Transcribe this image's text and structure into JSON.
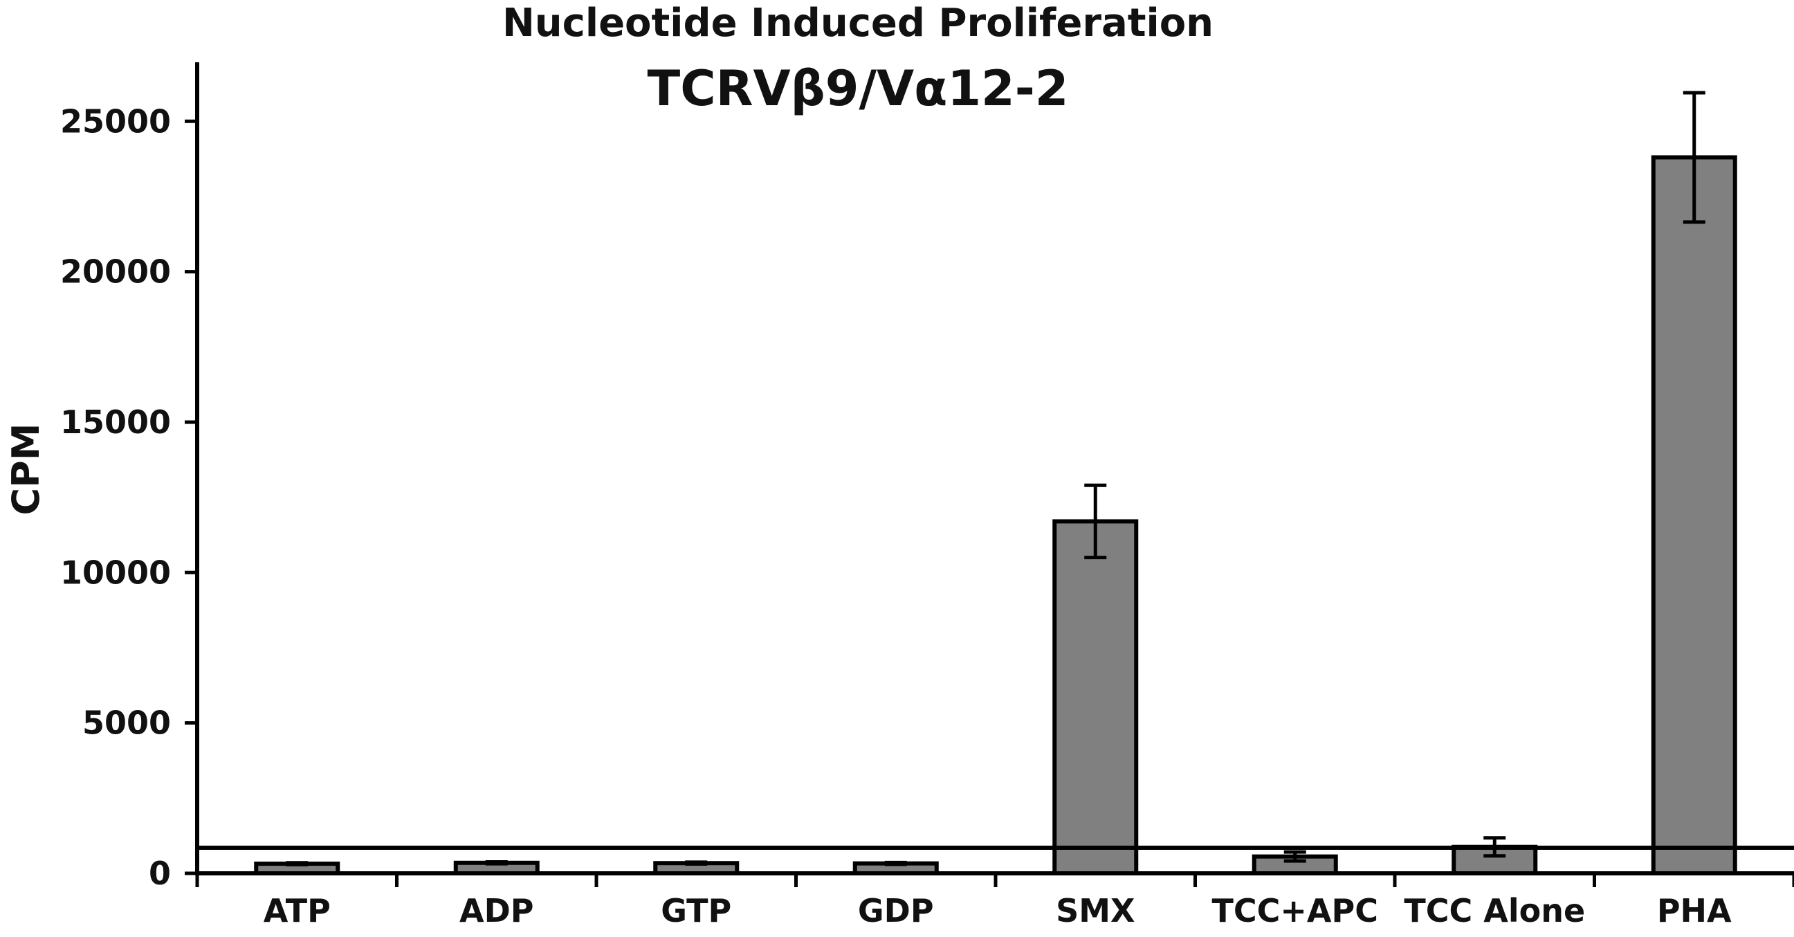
{
  "chart_data": {
    "type": "bar",
    "title": "Nucleotide Induced Proliferation",
    "subtitle": "TCRVβ9/Vα12-2",
    "xlabel": "",
    "ylabel": "CPM",
    "ylim": [
      0,
      27000
    ],
    "yticks": [
      0,
      5000,
      10000,
      15000,
      20000,
      25000
    ],
    "ytick_labels": [
      "0",
      "5000",
      "10000",
      "15000",
      "20000",
      "25000"
    ],
    "categories": [
      "ATP",
      "ADP",
      "GTP",
      "GDP",
      "SMX",
      "TCC+APC",
      "TCC Alone",
      "PHA"
    ],
    "values": [
      320,
      350,
      340,
      330,
      11700,
      560,
      880,
      23800
    ],
    "errors": [
      30,
      30,
      30,
      30,
      1200,
      150,
      300,
      2150
    ],
    "reference_line": 850,
    "grid": false,
    "legend": "none",
    "colors": {
      "bar_fill": "#808080",
      "bar_edge": "#000000",
      "axis": "#000000",
      "background": "#ffffff"
    }
  }
}
